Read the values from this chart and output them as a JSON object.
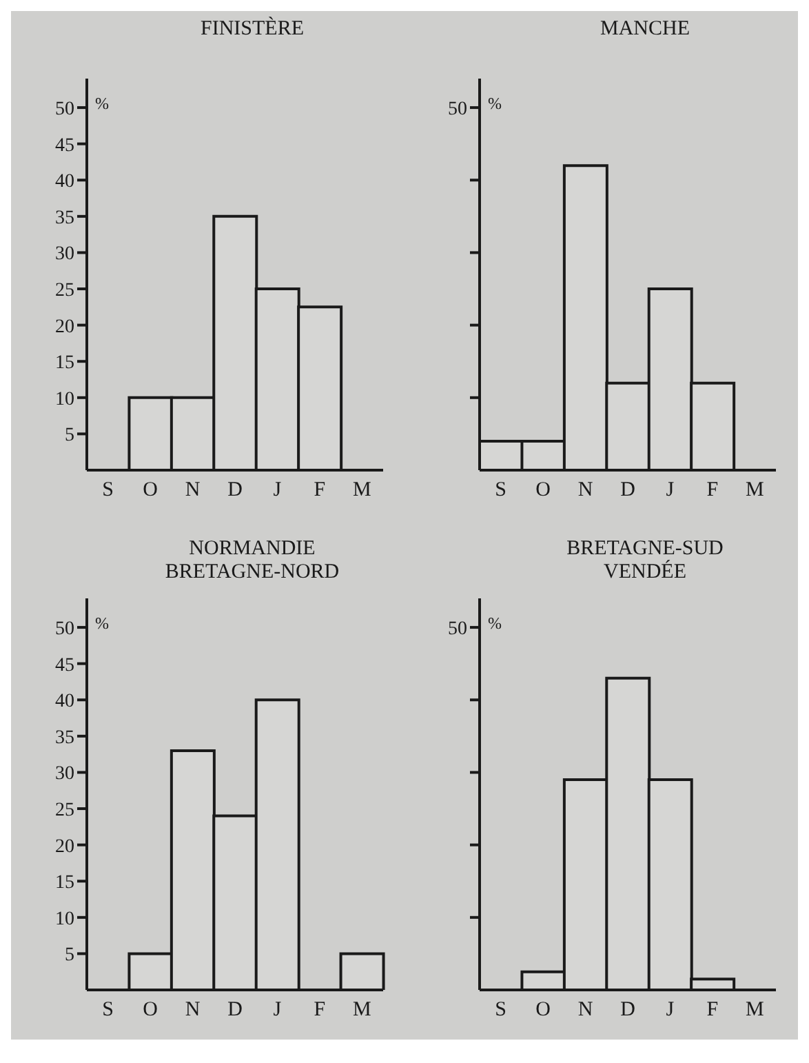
{
  "chart_data": [
    {
      "type": "bar",
      "title": "FINISTÈRE",
      "ylabel": "%",
      "categories": [
        "S",
        "O",
        "N",
        "D",
        "J",
        "F",
        "M"
      ],
      "values": [
        0,
        10,
        10,
        35,
        25,
        22.5,
        0
      ],
      "color": "#d6d6d4",
      "ylim": [
        0,
        54
      ],
      "yticks": [
        5,
        10,
        15,
        20,
        25,
        30,
        35,
        40,
        45,
        50
      ]
    },
    {
      "type": "bar",
      "title": "MANCHE",
      "ylabel": "%",
      "categories": [
        "S",
        "O",
        "N",
        "D",
        "J",
        "F",
        "M"
      ],
      "values": [
        4,
        4,
        42,
        12,
        25,
        12,
        0
      ],
      "color": "#d6d6d4",
      "ylim": [
        0,
        54
      ],
      "yticks": [
        {
          "value": 10,
          "label": null
        },
        {
          "value": 20,
          "label": null
        },
        {
          "value": 30,
          "label": null
        },
        {
          "value": 40,
          "label": null
        },
        50
      ]
    },
    {
      "type": "bar",
      "title": "NORMANDIE\nBRETAGNE-NORD",
      "ylabel": "%",
      "categories": [
        "S",
        "O",
        "N",
        "D",
        "J",
        "F",
        "M"
      ],
      "values": [
        0,
        5,
        33,
        24,
        40,
        0,
        5
      ],
      "color": "#d6d6d4",
      "ylim": [
        0,
        54
      ],
      "yticks": [
        5,
        10,
        15,
        20,
        25,
        30,
        35,
        40,
        45,
        50
      ]
    },
    {
      "type": "bar",
      "title": "BRETAGNE-SUD\nVENDÉE",
      "ylabel": "%",
      "categories": [
        "S",
        "O",
        "N",
        "D",
        "J",
        "F",
        "M"
      ],
      "values": [
        0,
        2.5,
        29,
        43,
        29,
        1.5,
        0
      ],
      "color": "#d6d6d4",
      "ylim": [
        0,
        54
      ],
      "yticks": [
        {
          "value": 10,
          "label": null
        },
        {
          "value": 20,
          "label": null
        },
        {
          "value": 30,
          "label": null
        },
        {
          "value": 40,
          "label": null
        },
        50
      ]
    }
  ]
}
